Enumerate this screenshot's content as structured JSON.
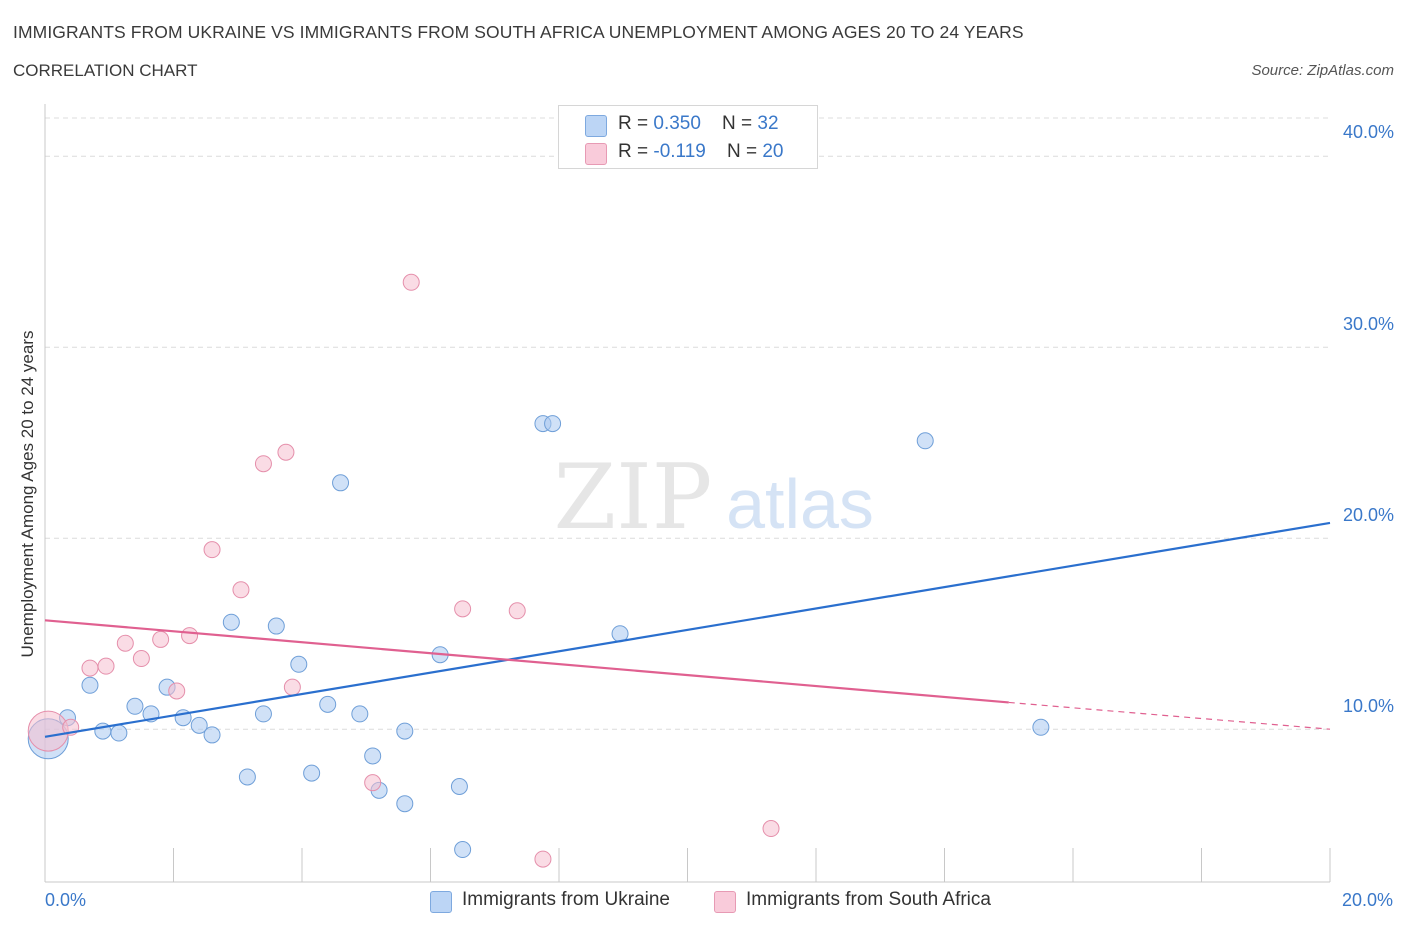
{
  "chart_data": {
    "type": "scatter",
    "title": "IMMIGRANTS FROM UKRAINE VS IMMIGRANTS FROM SOUTH AFRICA UNEMPLOYMENT AMONG AGES 20 TO 24 YEARS",
    "subtitle": "CORRELATION CHART",
    "source": "Source: ZipAtlas.com",
    "xlabel": "",
    "ylabel": "Unemployment Among Ages 20 to 24 years",
    "xlim": [
      0,
      20
    ],
    "ylim": [
      2,
      42
    ],
    "x_tick_labels": [
      "0.0%",
      "20.0%"
    ],
    "y_ticks": [
      10,
      20,
      30,
      40
    ],
    "y_tick_labels": [
      "10.0%",
      "20.0%",
      "30.0%",
      "40.0%"
    ],
    "legend": {
      "rows": [
        {
          "r_label": "R = ",
          "r_value": "0.350",
          "n_label": "N = ",
          "n_value": "32"
        },
        {
          "r_label": "R = ",
          "r_value": "-0.119",
          "n_label": "N = ",
          "n_value": "20"
        }
      ]
    },
    "watermark": {
      "zip": "ZIP",
      "atlas": "atlas"
    },
    "series": [
      {
        "name": "Immigrants from Ukraine",
        "color": "#a9c8f0",
        "stroke": "#6f9fd8",
        "line_color": "#2a6fce",
        "trend": {
          "x": [
            0,
            20
          ],
          "y": [
            9.6,
            20.8
          ]
        },
        "points": [
          {
            "x": 0.05,
            "y": 9.5,
            "big": true
          },
          {
            "x": 0.35,
            "y": 10.6
          },
          {
            "x": 0.7,
            "y": 12.3
          },
          {
            "x": 0.9,
            "y": 9.9
          },
          {
            "x": 1.15,
            "y": 9.8
          },
          {
            "x": 1.4,
            "y": 11.2
          },
          {
            "x": 1.65,
            "y": 10.8
          },
          {
            "x": 1.9,
            "y": 12.2
          },
          {
            "x": 2.15,
            "y": 10.6
          },
          {
            "x": 2.4,
            "y": 10.2
          },
          {
            "x": 2.6,
            "y": 9.7
          },
          {
            "x": 2.9,
            "y": 15.6
          },
          {
            "x": 3.15,
            "y": 7.5
          },
          {
            "x": 3.4,
            "y": 10.8
          },
          {
            "x": 3.6,
            "y": 15.4
          },
          {
            "x": 3.95,
            "y": 13.4
          },
          {
            "x": 4.15,
            "y": 7.7
          },
          {
            "x": 4.4,
            "y": 11.3
          },
          {
            "x": 4.6,
            "y": 22.9
          },
          {
            "x": 4.9,
            "y": 10.8
          },
          {
            "x": 5.1,
            "y": 8.6
          },
          {
            "x": 5.2,
            "y": 6.8
          },
          {
            "x": 5.6,
            "y": 6.1
          },
          {
            "x": 5.6,
            "y": 9.9
          },
          {
            "x": 6.15,
            "y": 13.9
          },
          {
            "x": 6.45,
            "y": 7.0
          },
          {
            "x": 6.5,
            "y": 3.7
          },
          {
            "x": 7.75,
            "y": 26.0
          },
          {
            "x": 7.9,
            "y": 26.0
          },
          {
            "x": 8.95,
            "y": 15.0
          },
          {
            "x": 13.7,
            "y": 25.1
          },
          {
            "x": 15.5,
            "y": 10.1
          }
        ]
      },
      {
        "name": "Immigrants from South Africa",
        "color": "#f6bfd0",
        "stroke": "#e58fab",
        "line_color": "#e06090",
        "trend": {
          "x": [
            0,
            15
          ],
          "y": [
            15.7,
            11.4
          ]
        },
        "trend_dash": {
          "x": [
            15,
            20
          ],
          "y": [
            11.4,
            10.0
          ]
        },
        "points": [
          {
            "x": 0.05,
            "y": 9.9,
            "big": true
          },
          {
            "x": 0.4,
            "y": 10.1
          },
          {
            "x": 0.7,
            "y": 13.2
          },
          {
            "x": 0.95,
            "y": 13.3
          },
          {
            "x": 1.25,
            "y": 14.5
          },
          {
            "x": 1.5,
            "y": 13.7
          },
          {
            "x": 1.8,
            "y": 14.7
          },
          {
            "x": 2.05,
            "y": 12.0
          },
          {
            "x": 2.25,
            "y": 14.9
          },
          {
            "x": 2.6,
            "y": 19.4
          },
          {
            "x": 3.05,
            "y": 17.3
          },
          {
            "x": 3.4,
            "y": 23.9
          },
          {
            "x": 3.75,
            "y": 24.5
          },
          {
            "x": 3.85,
            "y": 12.2
          },
          {
            "x": 5.1,
            "y": 7.2
          },
          {
            "x": 5.7,
            "y": 33.4
          },
          {
            "x": 6.5,
            "y": 16.3
          },
          {
            "x": 7.35,
            "y": 16.2
          },
          {
            "x": 7.75,
            "y": 3.2
          },
          {
            "x": 11.3,
            "y": 4.8
          }
        ]
      }
    ]
  }
}
